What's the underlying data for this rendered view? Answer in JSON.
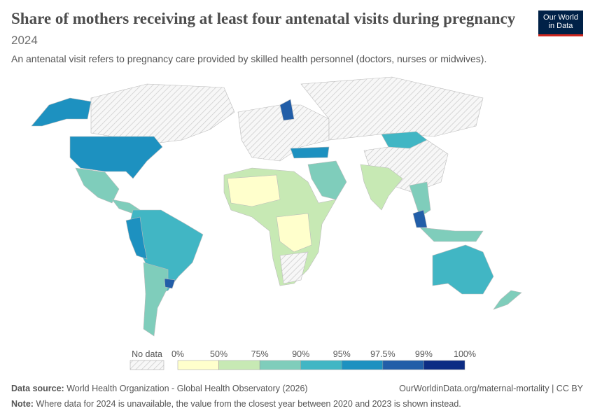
{
  "header": {
    "title": "Share of mothers receiving at least four antenatal visits during pregnancy",
    "year": "2024",
    "subtitle": "An antenatal visit refers to pregnancy care provided by skilled health personnel (doctors, nurses or midwives).",
    "logo": [
      "Our World",
      "in Data"
    ]
  },
  "legend": {
    "no_data": "No data",
    "ticks": [
      "0%",
      "50%",
      "75%",
      "90%",
      "95%",
      "97.5%",
      "99%",
      "100%"
    ],
    "colors": [
      "#ffffcc",
      "#c7e9b4",
      "#7fcdbb",
      "#41b6c4",
      "#1d91c0",
      "#225ea8",
      "#0c2c84"
    ]
  },
  "footer": {
    "source_label": "Data source:",
    "source": "World Health Organization - Global Health Observatory (2026)",
    "url": "OurWorldinData.org/maternal-mortality | CC BY",
    "note_label": "Note:",
    "note": "Where data for 2024 is unavailable, the value from the closest year between 2020 and 2023 is shown instead."
  }
}
